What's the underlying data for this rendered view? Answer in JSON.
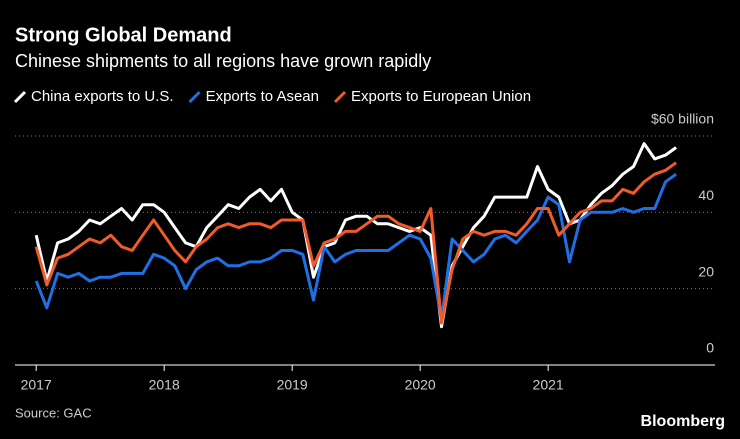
{
  "chart_data": {
    "type": "line",
    "title": "Strong Global Demand",
    "subtitle": "Chinese shipments to all regions have grown rapidly",
    "source": "Source: GAC",
    "brand": "Bloomberg",
    "x": [
      2017,
      2017.083,
      2017.167,
      2017.25,
      2017.333,
      2017.417,
      2017.5,
      2017.583,
      2017.667,
      2017.75,
      2017.833,
      2017.917,
      2018,
      2018.083,
      2018.167,
      2018.25,
      2018.333,
      2018.417,
      2018.5,
      2018.583,
      2018.667,
      2018.75,
      2018.833,
      2018.917,
      2019,
      2019.083,
      2019.167,
      2019.25,
      2019.333,
      2019.417,
      2019.5,
      2019.583,
      2019.667,
      2019.75,
      2019.833,
      2019.917,
      2020,
      2020.083,
      2020.167,
      2020.25,
      2020.333,
      2020.417,
      2020.5,
      2020.583,
      2020.667,
      2020.75,
      2020.833,
      2020.917,
      2021,
      2021.083,
      2021.167,
      2021.25,
      2021.333,
      2021.417,
      2021.5,
      2021.583,
      2021.667,
      2021.75,
      2021.833,
      2021.917,
      2022
    ],
    "xlim": [
      2016.85,
      2022.21
    ],
    "xticks": [
      2017,
      2018,
      2019,
      2020,
      2021
    ],
    "ylim": [
      0,
      60
    ],
    "yticks": [
      0,
      20,
      40,
      {
        "value": 60,
        "label": "$60 billion"
      }
    ],
    "grid": true,
    "series": [
      {
        "name": "China exports to U.S.",
        "color": "#ffffff",
        "values": [
          34,
          22,
          32,
          33,
          35,
          38,
          37,
          39,
          41,
          38,
          42,
          42,
          40,
          36,
          32,
          31,
          36,
          39,
          42,
          41,
          44,
          46,
          43,
          46,
          40,
          38,
          23,
          31,
          32,
          38,
          39,
          39,
          37,
          37,
          36,
          35,
          36,
          34,
          10,
          26,
          31,
          36,
          39,
          44,
          44,
          44,
          44,
          52,
          46,
          44,
          37,
          38,
          42,
          45,
          47,
          50,
          52,
          58,
          54,
          55,
          57
        ]
      },
      {
        "name": "Exports to Asean",
        "color": "#1f6fe5",
        "values": [
          22,
          15,
          24,
          23,
          24,
          22,
          23,
          23,
          24,
          24,
          24,
          29,
          28,
          26,
          20,
          25,
          27,
          28,
          26,
          26,
          27,
          27,
          28,
          30,
          30,
          29,
          17,
          31,
          27,
          29,
          30,
          30,
          30,
          30,
          32,
          34,
          33,
          28,
          12,
          33,
          30,
          27,
          29,
          33,
          34,
          32,
          35,
          38,
          44,
          42,
          27,
          38,
          40,
          40,
          40,
          41,
          40,
          41,
          41,
          48,
          50
        ]
      },
      {
        "name": "Exports to European Union",
        "color": "#f15a29",
        "values": [
          31,
          21,
          28,
          29,
          31,
          33,
          32,
          34,
          31,
          30,
          34,
          38,
          34,
          30,
          27,
          31,
          33,
          36,
          37,
          36,
          37,
          37,
          36,
          38,
          38,
          38,
          26,
          32,
          33,
          35,
          35,
          37,
          39,
          39,
          37,
          36,
          35,
          41,
          11,
          25,
          33,
          35,
          34,
          35,
          35,
          34,
          37,
          41,
          41,
          34,
          37,
          40,
          41,
          43,
          43,
          46,
          45,
          48,
          50,
          51,
          53
        ]
      }
    ]
  }
}
